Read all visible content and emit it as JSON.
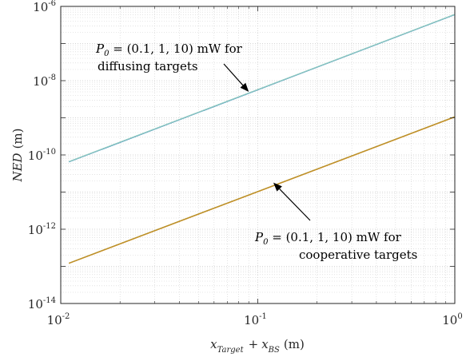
{
  "chart_data": {
    "type": "line",
    "x_scale": "log",
    "y_scale": "log",
    "xlim": [
      0.01,
      1
    ],
    "ylim": [
      1e-14,
      1e-06
    ],
    "grid": true,
    "minor_grid": true,
    "x_ticks": [
      {
        "base": "10",
        "exp": "-2",
        "value": 0.01
      },
      {
        "base": "10",
        "exp": "-1",
        "value": 0.1
      },
      {
        "base": "10",
        "exp": "0",
        "value": 1
      }
    ],
    "y_ticks": [
      {
        "base": "10",
        "exp": "-14",
        "value": 1e-14
      },
      {
        "base": "10",
        "exp": "-12",
        "value": 1e-12
      },
      {
        "base": "10",
        "exp": "-10",
        "value": 1e-10
      },
      {
        "base": "10",
        "exp": "-8",
        "value": 1e-08
      },
      {
        "base": "10",
        "exp": "-6",
        "value": 1e-06
      }
    ],
    "xlabel": {
      "x": "x",
      "target": "Target",
      "plus": "+",
      "bs": "BS",
      "unit": "(m)"
    },
    "ylabel": {
      "var": "NED",
      "unit": "(m)"
    },
    "series": [
      {
        "color": "#1f77b4",
        "x": [
          0.011,
          1
        ],
        "y": [
          6.5e-11,
          6e-07
        ]
      },
      {
        "color": "#8ec9c0",
        "x": [
          0.011,
          1
        ],
        "y": [
          6.6e-11,
          6.1e-07
        ]
      },
      {
        "color": "#d98c1f",
        "x": [
          0.011,
          1
        ],
        "y": [
          1.2e-13,
          1.05e-09
        ]
      },
      {
        "color": "#b8912a",
        "x": [
          0.011,
          1
        ],
        "y": [
          1.22e-13,
          1.07e-09
        ]
      }
    ],
    "annotations": [
      {
        "id": "diffusing",
        "p": "P",
        "sub": "0",
        "rest": " = (0.1, 1, 10) mW for",
        "line2": "diffusing targets",
        "arrow_to": [
          0.09,
          5e-09
        ]
      },
      {
        "id": "cooperative",
        "p": "P",
        "sub": "0",
        "rest": " = (0.1, 1, 10) mW for",
        "line2": "cooperative targets",
        "arrow_to": [
          0.12,
          1.8e-11
        ]
      }
    ]
  }
}
